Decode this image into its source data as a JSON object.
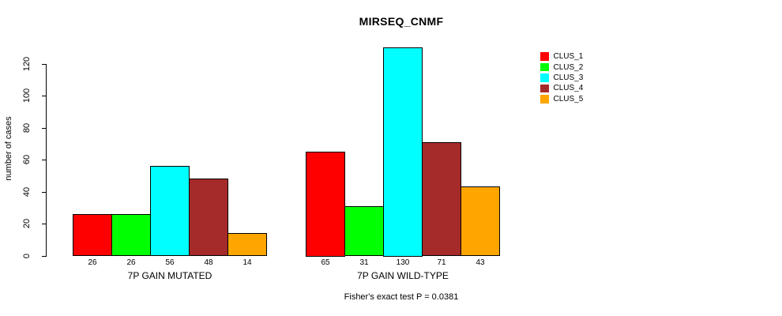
{
  "chart_data": {
    "type": "bar",
    "title": "MIRSEQ_CNMF",
    "ylabel": "number of cases",
    "xlabel": "",
    "ylim": [
      0,
      130
    ],
    "yticks": [
      0,
      20,
      40,
      60,
      80,
      100,
      120
    ],
    "grid": false,
    "legend_position": "right",
    "series": [
      {
        "name": "CLUS_1",
        "color": "#FF0000"
      },
      {
        "name": "CLUS_2",
        "color": "#00FF00"
      },
      {
        "name": "CLUS_3",
        "color": "#00FFFF"
      },
      {
        "name": "CLUS_4",
        "color": "#A52A2A"
      },
      {
        "name": "CLUS_5",
        "color": "#FFA500"
      }
    ],
    "groups": [
      {
        "label": "7P GAIN MUTATED",
        "values": [
          26,
          26,
          56,
          48,
          14
        ]
      },
      {
        "label": "7P GAIN WILD-TYPE",
        "values": [
          65,
          31,
          130,
          71,
          43
        ]
      }
    ],
    "footnote": "Fisher's exact test P = 0.0381"
  }
}
